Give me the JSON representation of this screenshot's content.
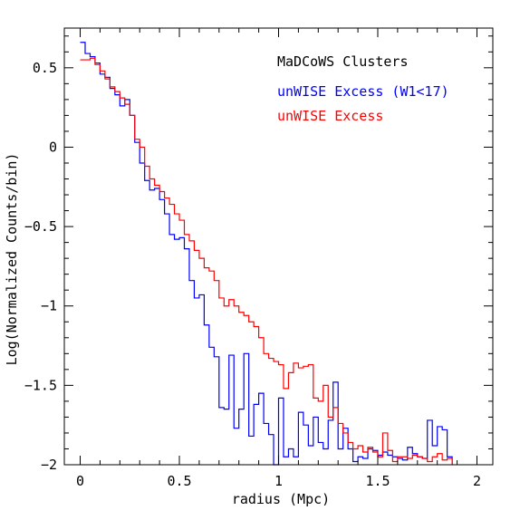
{
  "chart_data": {
    "type": "line",
    "step": true,
    "title": "MaDCoWS Clusters",
    "xlabel": "radius (Mpc)",
    "ylabel": "Log(Normalized Counts/bin)",
    "xlim": [
      -0.08,
      2.08
    ],
    "ylim": [
      -2,
      0.75
    ],
    "xticks": [
      0,
      0.5,
      1,
      1.5,
      2
    ],
    "xtick_labels": [
      "0",
      "0.5",
      "1",
      "1.5",
      "2"
    ],
    "yticks": [
      -2,
      -1.5,
      -1,
      -0.5,
      0,
      0.5
    ],
    "ytick_labels": [
      "−2",
      "−1.5",
      "−1",
      "−0.5",
      "0",
      "0.5"
    ],
    "bin_width": 0.025,
    "bin_start": 0,
    "legend_position": "top-right",
    "colors": {
      "blue": "#0000ff",
      "red": "#ff0000"
    },
    "series": [
      {
        "name": "unWISE Excess (W1<17)",
        "color": "#0000ff",
        "values": [
          0.66,
          0.59,
          0.57,
          0.53,
          0.46,
          0.44,
          0.37,
          0.33,
          0.26,
          0.3,
          0.2,
          0.03,
          -0.1,
          -0.21,
          -0.27,
          -0.26,
          -0.33,
          -0.42,
          -0.55,
          -0.58,
          -0.57,
          -0.64,
          -0.84,
          -0.95,
          -0.93,
          -1.12,
          -1.26,
          -1.32,
          -1.64,
          -1.65,
          -1.31,
          -1.77,
          -1.65,
          -1.3,
          -1.82,
          -1.62,
          -1.55,
          -1.74,
          -1.81,
          -2,
          -1.58,
          -1.95,
          -1.9,
          -1.95,
          -1.67,
          -1.75,
          -1.88,
          -1.7,
          -1.86,
          -1.9,
          -1.72,
          -1.48,
          -1.9,
          -1.77,
          -1.9,
          -1.98,
          -1.95,
          -1.96,
          -1.9,
          -1.91,
          -1.94,
          -1.92,
          -1.94,
          -1.95,
          -1.96,
          -1.97,
          -1.89,
          -1.93,
          -1.95,
          -1.96,
          -1.72,
          -1.88,
          -1.76,
          -1.78,
          -1.95
        ]
      },
      {
        "name": "unWISE Excess",
        "color": "#ff0000",
        "values": [
          0.55,
          0.55,
          0.56,
          0.52,
          0.48,
          0.43,
          0.38,
          0.35,
          0.31,
          0.27,
          0.2,
          0.05,
          0.0,
          -0.12,
          -0.2,
          -0.24,
          -0.28,
          -0.32,
          -0.36,
          -0.42,
          -0.46,
          -0.55,
          -0.59,
          -0.65,
          -0.7,
          -0.76,
          -0.78,
          -0.84,
          -0.95,
          -1.0,
          -0.96,
          -1.0,
          -1.04,
          -1.06,
          -1.1,
          -1.13,
          -1.2,
          -1.3,
          -1.33,
          -1.35,
          -1.37,
          -1.52,
          -1.42,
          -1.36,
          -1.39,
          -1.38,
          -1.37,
          -1.58,
          -1.6,
          -1.5,
          -1.7,
          -1.64,
          -1.74,
          -1.8,
          -1.86,
          -1.9,
          -1.88,
          -1.92,
          -1.89,
          -1.92,
          -1.95,
          -1.8,
          -1.91,
          -1.98,
          -1.95,
          -1.95,
          -1.96,
          -1.94,
          -1.95,
          -1.96,
          -1.98,
          -1.95,
          -1.93,
          -1.97,
          -1.96
        ]
      }
    ]
  }
}
